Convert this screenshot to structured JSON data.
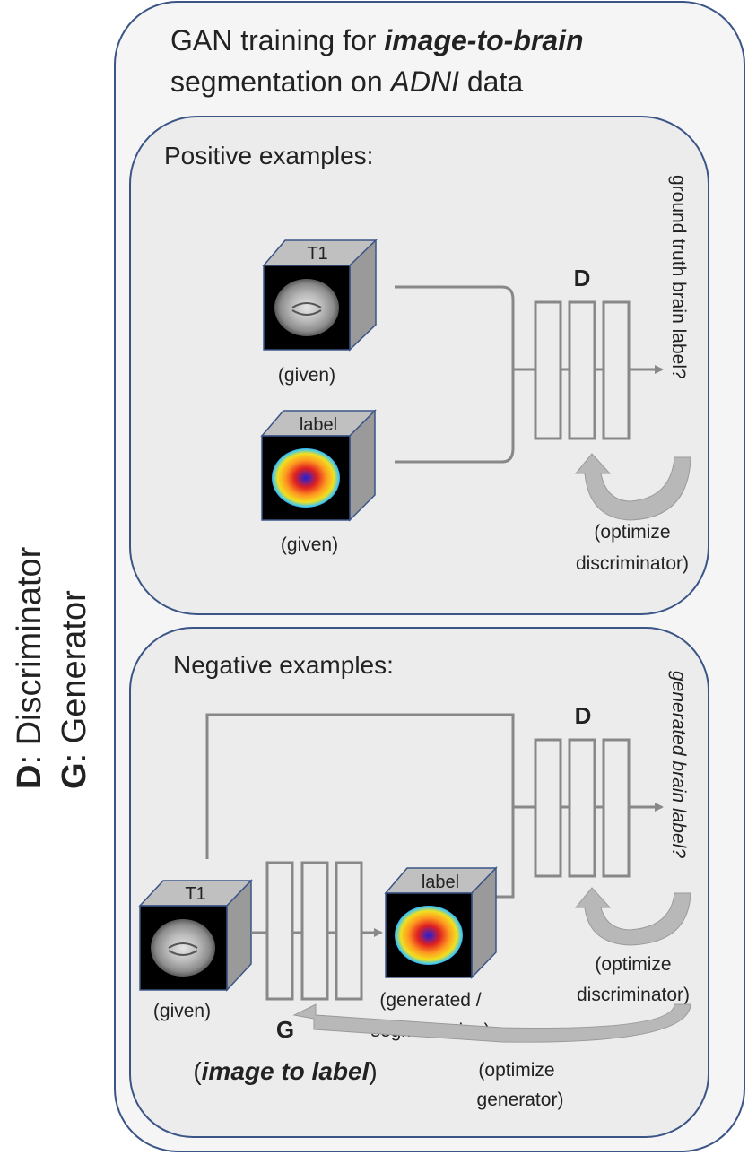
{
  "legend": {
    "d_letter": "D",
    "d_text": ": Discriminator",
    "g_letter": "G",
    "g_text": ": Generator"
  },
  "title": {
    "line1_prefix": "GAN training for ",
    "line1_bold": "image-to-brain",
    "line2_prefix": "segmentation on ",
    "line2_italic": "ADNI",
    "line2_suffix": " data"
  },
  "positive": {
    "heading": "Positive examples:",
    "t1_cube_label": "T1",
    "t1_caption": "(given)",
    "label_cube_label": "label",
    "label_caption": "(given)",
    "discriminator_label": "D",
    "output_question": "ground truth brain label?",
    "optimize_line1": "(optimize",
    "optimize_line2": "discriminator)"
  },
  "negative": {
    "heading": "Negative examples:",
    "t1_cube_label": "T1",
    "t1_caption": "(given)",
    "label_cube_label": "label",
    "label_caption_line1": "(generated /",
    "label_caption_line2": "segmentation)",
    "discriminator_label": "D",
    "generator_label": "G",
    "generator_caption_open": "(",
    "generator_caption_bold": "image to label",
    "generator_caption_close": ")",
    "output_question": "generated brain label?",
    "optimize_disc_line1": "(optimize",
    "optimize_disc_line2": "discriminator)",
    "optimize_gen_line1": "(optimize",
    "optimize_gen_line2": "generator)"
  },
  "colors": {
    "panel_border": "#3b5587",
    "outer_fill": "#f5f5f5",
    "inner_fill": "#ececec",
    "network_stroke": "#888888",
    "cube_face": "#c0c0c0",
    "cube_side": "#9a9a9a"
  }
}
